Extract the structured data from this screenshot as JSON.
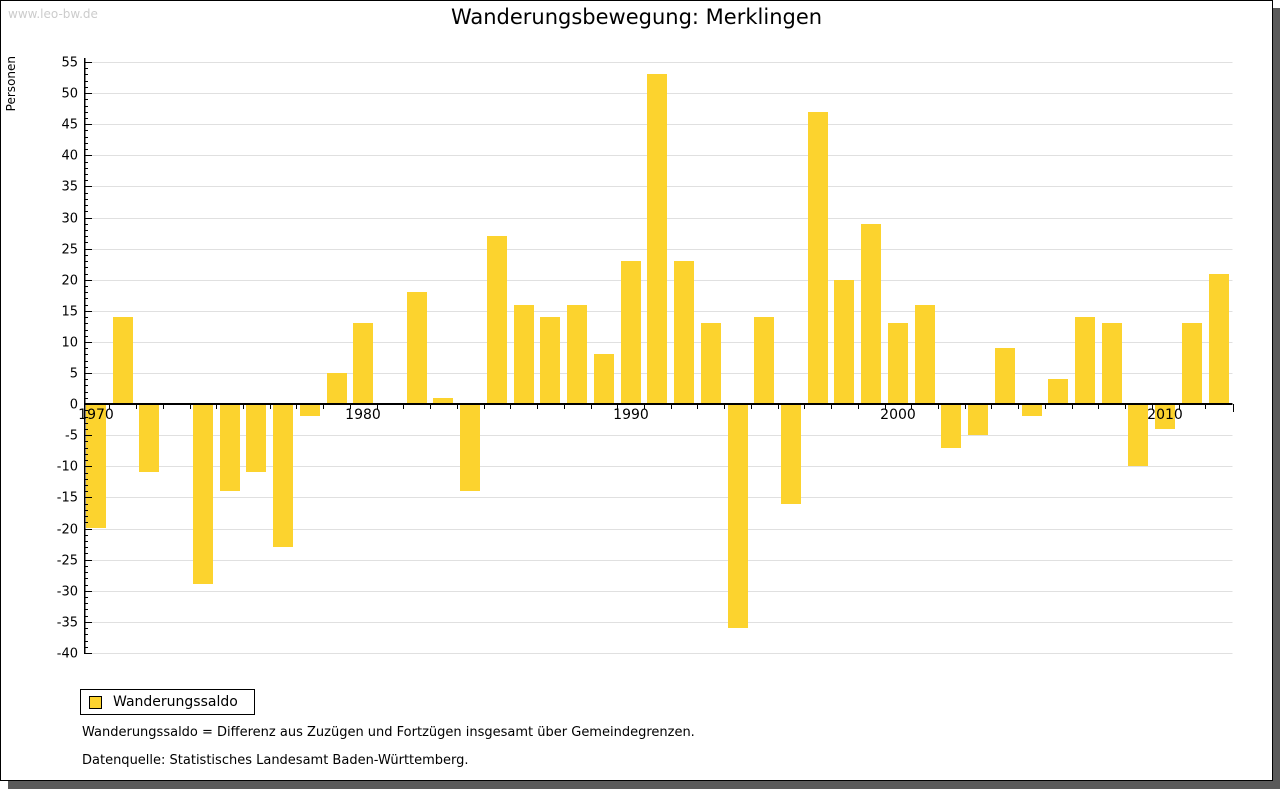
{
  "watermark": "www.leo-bw.de",
  "title": "Wanderungsbewegung: Merklingen",
  "y_axis_title": "Personen",
  "legend": {
    "label": "Wanderungssaldo"
  },
  "footnotes": {
    "definition": "Wanderungssaldo = Differenz aus Zuzügen und Fortzügen insgesamt über Gemeindegrenzen.",
    "source": "Datenquelle: Statistisches Landesamt Baden-Württemberg."
  },
  "colors": {
    "bar": "#FCD32E",
    "grid": "#E0E0E0",
    "axis": "#000000",
    "text": "#000000",
    "shadow": "#5A5A5A",
    "watermark": "#CCCCCC"
  },
  "chart_data": {
    "type": "bar",
    "title": "Wanderungsbewegung: Merklingen",
    "xlabel": "",
    "ylabel": "Personen",
    "series_name": "Wanderungssaldo",
    "x": [
      1970,
      1971,
      1972,
      1973,
      1974,
      1975,
      1976,
      1977,
      1978,
      1979,
      1980,
      1981,
      1982,
      1983,
      1984,
      1985,
      1986,
      1987,
      1988,
      1989,
      1990,
      1991,
      1992,
      1993,
      1994,
      1995,
      1996,
      1997,
      1998,
      1999,
      2000,
      2001,
      2002,
      2003,
      2004,
      2005,
      2006,
      2007,
      2008,
      2009,
      2010,
      2011,
      2012
    ],
    "values": [
      -20,
      14,
      -11,
      0,
      -29,
      -14,
      -11,
      -23,
      -2,
      5,
      13,
      0,
      18,
      1,
      -14,
      27,
      16,
      14,
      16,
      8,
      23,
      53,
      23,
      13,
      -36,
      14,
      -16,
      47,
      20,
      29,
      13,
      16,
      -7,
      -5,
      9,
      -2,
      4,
      14,
      13,
      -10,
      -4,
      13,
      21
    ],
    "ylim": [
      -40,
      55
    ],
    "y_tick_step": 5,
    "y_minor_tick_step": 1,
    "x_tick_labels": [
      "1970",
      "1980",
      "1990",
      "2000",
      "2010"
    ],
    "grid": true,
    "legend_position": "bottom-left"
  }
}
